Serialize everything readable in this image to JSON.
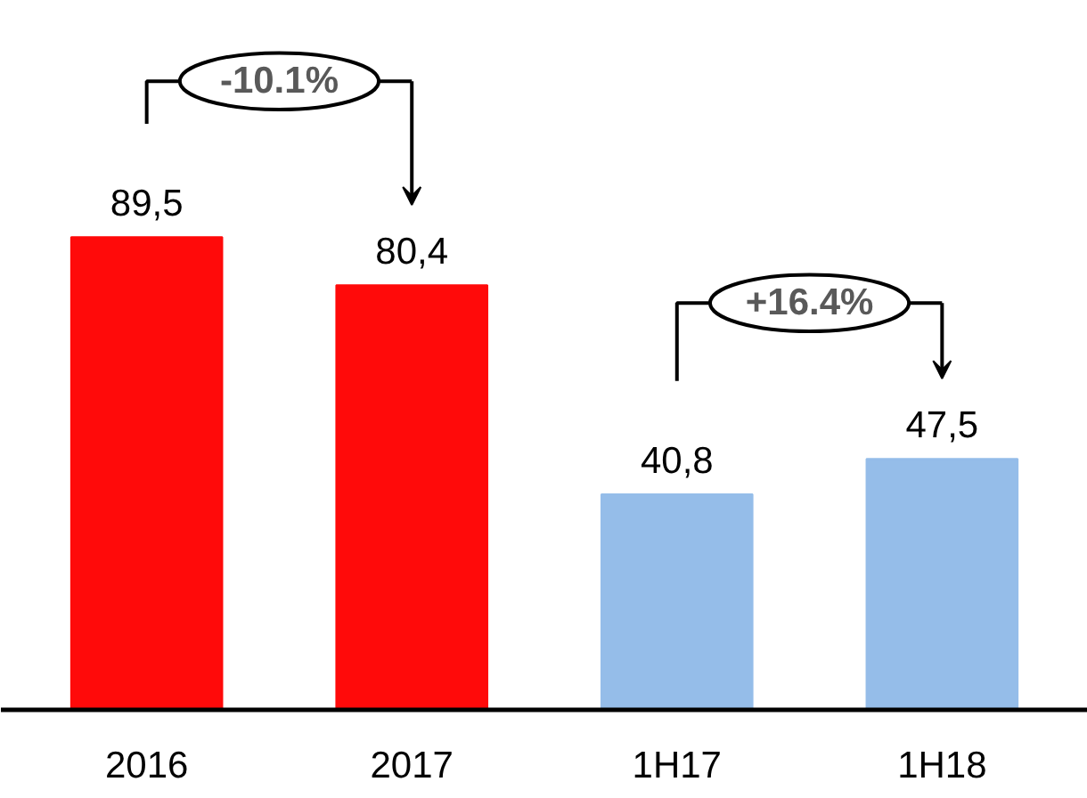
{
  "chart_data": {
    "type": "bar",
    "categories": [
      "2016",
      "2017",
      "1H17",
      "1H18"
    ],
    "values": [
      89.5,
      80.4,
      40.8,
      47.5
    ],
    "value_labels": [
      "89,5",
      "80,4",
      "40,8",
      "47,5"
    ],
    "colors": [
      "#ff0a0a",
      "#ff0a0a",
      "#95bde9",
      "#95bde9"
    ],
    "annotations": [
      "-10.1%",
      "+16.4%"
    ]
  }
}
